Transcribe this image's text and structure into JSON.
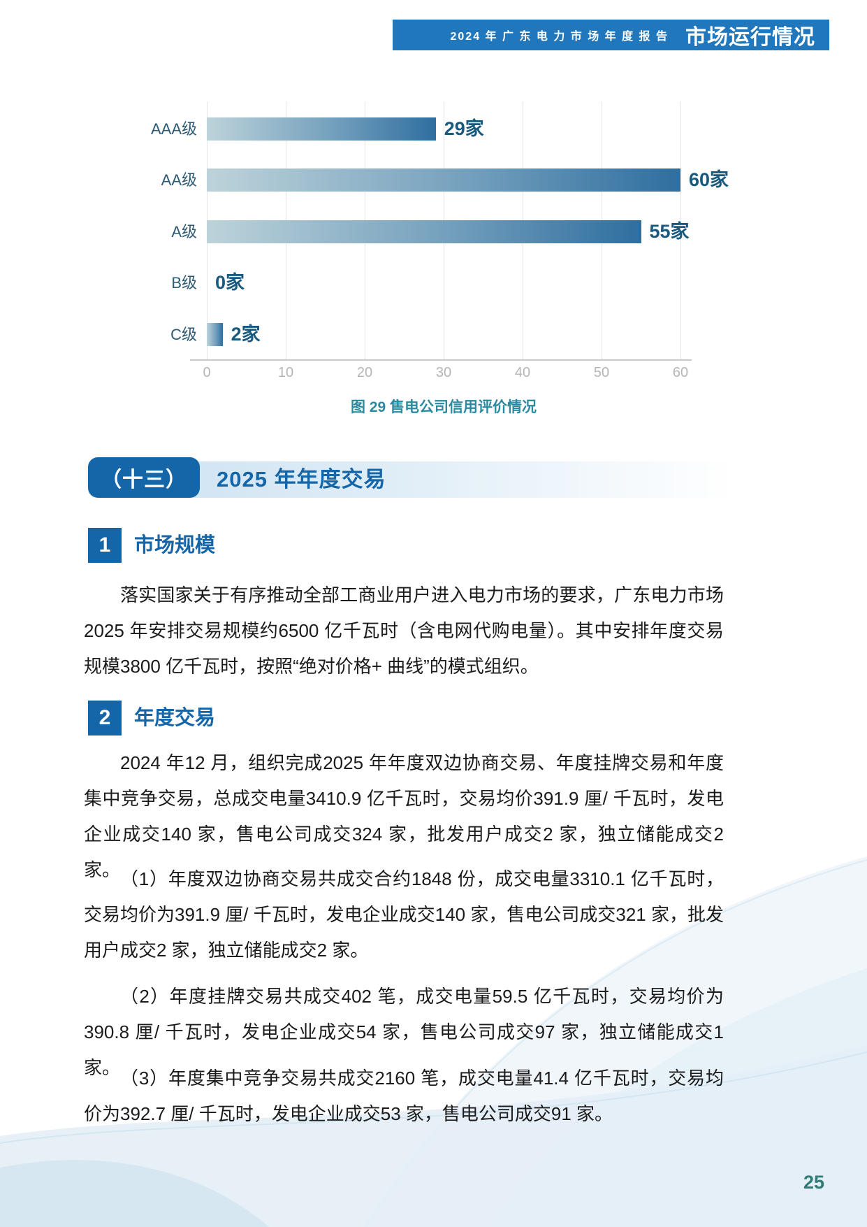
{
  "header": {
    "report_title": "2024 年 广 东 电 力 市 场 年 度 报 告",
    "page_section": "市场运行情况"
  },
  "chart_data": {
    "type": "bar",
    "orientation": "horizontal",
    "title": "",
    "xlabel": "",
    "ylabel": "",
    "caption": "图 29 售电公司信用评价情况",
    "categories": [
      "AAA级",
      "AA级",
      "A级",
      "B级",
      "C级"
    ],
    "values": [
      29,
      60,
      55,
      0,
      2
    ],
    "value_labels": [
      "29家",
      "60家",
      "55家",
      "0家",
      "2家"
    ],
    "xlim": [
      0,
      60
    ],
    "xticks": [
      "0",
      "10",
      "20",
      "30",
      "40",
      "50",
      "60"
    ],
    "grid": true,
    "legend_position": "none",
    "bar_color_start": "#bdd3da",
    "bar_color_end": "#2f6e9f"
  },
  "section": {
    "number_label": "（十三）",
    "title": "2025 年年度交易",
    "accent_color": "#1565a9"
  },
  "subsections": [
    {
      "number": "1",
      "title": "市场规模",
      "paragraphs": [
        "落实国家关于有序推动全部工商业用户进入电力市场的要求，广东电力市场2025 年安排交易规模约6500 亿千瓦时（含电网代购电量）。其中安排年度交易规模3800 亿千瓦时，按照“绝对价格+ 曲线”的模式组织。"
      ]
    },
    {
      "number": "2",
      "title": "年度交易",
      "paragraphs": [
        "2024 年12 月，组织完成2025 年年度双边协商交易、年度挂牌交易和年度集中竞争交易，总成交电量3410.9 亿千瓦时，交易均价391.9 厘/ 千瓦时，发电企业成交140 家，售电公司成交324 家，批发用户成交2 家，独立储能成交2 家。",
        "（1）年度双边协商交易共成交合约1848 份，成交电量3310.1 亿千瓦时，交易均价为391.9 厘/ 千瓦时，发电企业成交140 家，售电公司成交321 家，批发用户成交2 家，独立储能成交2 家。",
        "（2）年度挂牌交易共成交402 笔，成交电量59.5 亿千瓦时，交易均价为390.8 厘/ 千瓦时，发电企业成交54 家，售电公司成交97 家，独立储能成交1 家。",
        "（3）年度集中竞争交易共成交2160 笔，成交电量41.4 亿千瓦时，交易均价为392.7 厘/ 千瓦时，发电企业成交53 家，售电公司成交91 家。"
      ]
    }
  ],
  "footer": {
    "page_number": "25"
  }
}
